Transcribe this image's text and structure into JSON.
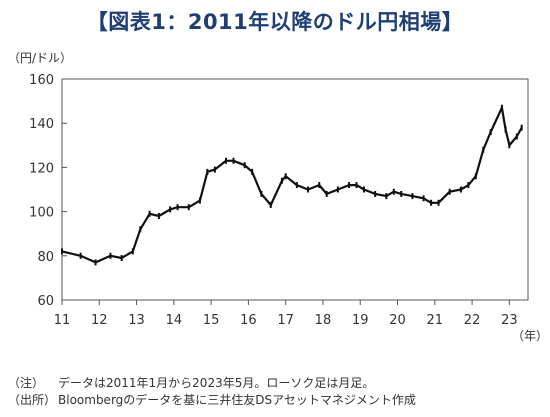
{
  "chart_data": {
    "type": "candlestick",
    "title": "【図表1：2011年以降のドル円相場】",
    "ylabel": "（円/ドル）",
    "xlabel": "（年）",
    "ylim": [
      60,
      160
    ],
    "yticks": [
      60,
      80,
      100,
      120,
      140,
      160
    ],
    "xlim": [
      2011,
      2023.5
    ],
    "xticks": [
      {
        "label": "11",
        "year": 2011
      },
      {
        "label": "12",
        "year": 2012
      },
      {
        "label": "13",
        "year": 2013
      },
      {
        "label": "14",
        "year": 2014
      },
      {
        "label": "15",
        "year": 2015
      },
      {
        "label": "16",
        "year": 2016
      },
      {
        "label": "17",
        "year": 2017
      },
      {
        "label": "18",
        "year": 2018
      },
      {
        "label": "19",
        "year": 2019
      },
      {
        "label": "20",
        "year": 2020
      },
      {
        "label": "21",
        "year": 2021
      },
      {
        "label": "22",
        "year": 2022
      },
      {
        "label": "23",
        "year": 2023
      }
    ],
    "grid": false,
    "series": [
      {
        "x": [
          2011.0,
          2011.5,
          2011.9,
          2012.3,
          2012.6,
          2012.9,
          2013.1,
          2013.35,
          2013.6,
          2013.9,
          2014.1,
          2014.4,
          2014.7,
          2014.9,
          2015.1,
          2015.4,
          2015.6,
          2015.9,
          2016.1,
          2016.35,
          2016.6,
          2016.9,
          2017.0,
          2017.3,
          2017.6,
          2017.9,
          2018.1,
          2018.4,
          2018.7,
          2018.9,
          2019.1,
          2019.4,
          2019.7,
          2019.9,
          2020.1,
          2020.4,
          2020.7,
          2020.9,
          2021.1,
          2021.4,
          2021.7,
          2021.9,
          2022.1,
          2022.3,
          2022.5,
          2022.8,
          2022.9,
          2023.0,
          2023.2,
          2023.33
        ],
        "y": [
          82,
          80,
          77,
          80,
          79,
          82,
          92,
          99,
          98,
          101,
          102,
          102,
          105,
          118,
          119,
          123,
          123,
          121,
          118,
          108,
          103,
          114,
          116,
          112,
          110,
          112,
          108,
          110,
          112,
          112,
          110,
          108,
          107,
          109,
          108,
          107,
          106,
          104,
          104,
          109,
          110,
          112,
          116,
          128,
          136,
          147,
          137,
          130,
          134,
          138
        ]
      }
    ]
  },
  "notes": [
    {
      "label": "（注）",
      "text": "データは2011年1月から2023年5月。ローソク足は月足。"
    },
    {
      "label": "（出所）",
      "text": "Bloombergのデータを基に三井住友DSアセットマネジメント作成"
    }
  ]
}
